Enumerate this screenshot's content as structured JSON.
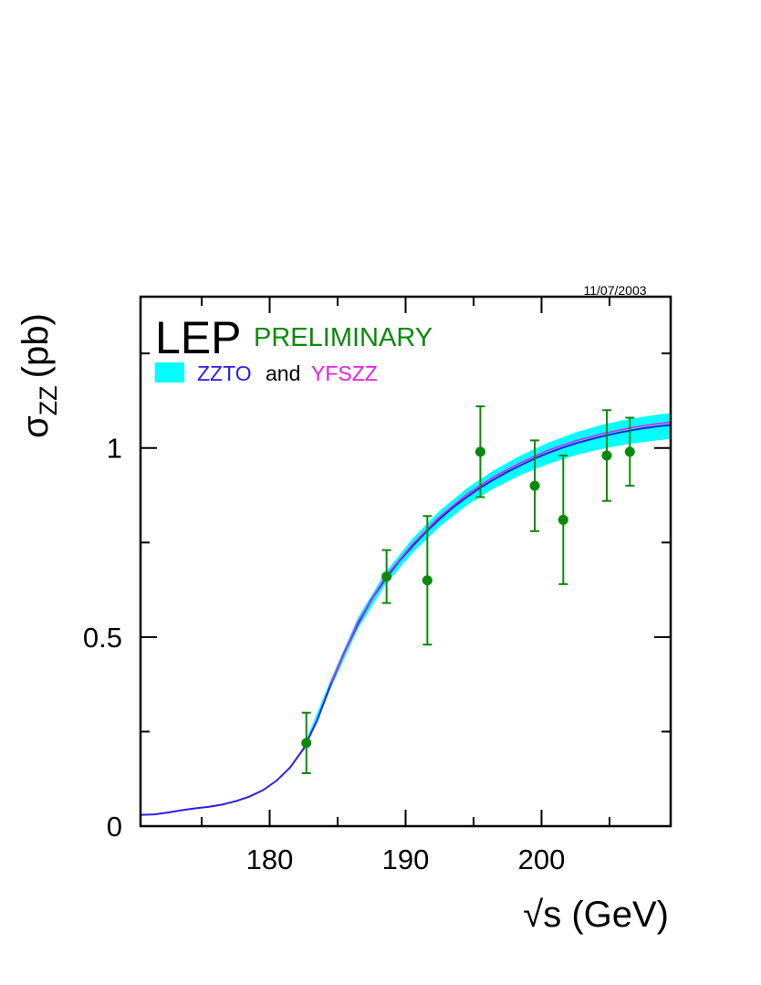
{
  "colors": {
    "data": "#0a8a0a",
    "band": "#00ffff",
    "zzto": "#2a1ee6",
    "yfszz": "#e61ee6",
    "and_text": "#000000",
    "frame": "#000000"
  },
  "header": {
    "date": "11/07/2003",
    "experiment": "LEP",
    "status": "PRELIMINARY"
  },
  "legend": {
    "band_icon": "cyan-band-swatch",
    "zzto": "ZZTO",
    "and": "and",
    "yfszz": "YFSZZ"
  },
  "chart_data": {
    "type": "line",
    "xlabel": "√s (GeV)",
    "ylabel_symbol": "σ",
    "ylabel_sub": "ZZ",
    "ylabel_unit": "(pb)",
    "xlim": [
      170.5,
      209.5
    ],
    "ylim": [
      0,
      1.4
    ],
    "xticks": [
      180,
      190,
      200
    ],
    "yticks": [
      0,
      0.5,
      1
    ],
    "xtick_labels": [
      "180",
      "190",
      "200"
    ],
    "ytick_labels": [
      "0",
      "0.5",
      "1"
    ],
    "grid": false,
    "legend_position": "top-left",
    "series": [
      {
        "name": "ZZTO",
        "kind": "curve",
        "x": [
          170.5,
          171.5,
          172.5,
          173.5,
          174.5,
          175.5,
          176.5,
          177.5,
          178.5,
          179.5,
          180.5,
          181.5,
          182.5,
          183.5,
          184.5,
          185.5,
          186.5,
          187.5,
          188.5,
          189.5,
          190.5,
          191.5,
          192.5,
          193.5,
          194.5,
          195.5,
          196.5,
          197.5,
          198.5,
          199.5,
          200.5,
          201.5,
          202.5,
          203.5,
          204.5,
          205.5,
          206.5,
          207.5,
          208.5,
          209.5
        ],
        "y": [
          0.03,
          0.031,
          0.036,
          0.042,
          0.047,
          0.051,
          0.057,
          0.066,
          0.078,
          0.095,
          0.12,
          0.155,
          0.205,
          0.28,
          0.375,
          0.46,
          0.535,
          0.6,
          0.653,
          0.7,
          0.74,
          0.778,
          0.812,
          0.843,
          0.87,
          0.895,
          0.917,
          0.937,
          0.955,
          0.972,
          0.987,
          1.0,
          1.012,
          1.022,
          1.031,
          1.039,
          1.046,
          1.052,
          1.057,
          1.061
        ]
      },
      {
        "name": "YFSZZ",
        "kind": "curve",
        "x": [
          184.5,
          186.5,
          188.5,
          190.5,
          192.5,
          194.5,
          196.5,
          198.5,
          200.5,
          202.5,
          204.5,
          206.5,
          208.5,
          209.5
        ],
        "y": [
          0.378,
          0.54,
          0.658,
          0.745,
          0.818,
          0.877,
          0.924,
          0.962,
          0.994,
          1.019,
          1.038,
          1.053,
          1.064,
          1.068
        ]
      },
      {
        "name": "uncertainty band",
        "kind": "band",
        "x": [
          182.5,
          184.5,
          186.5,
          188.5,
          190.5,
          192.5,
          194.5,
          196.5,
          198.5,
          200.5,
          202.5,
          204.5,
          206.5,
          208.5,
          209.5
        ],
        "y_low": [
          0.198,
          0.365,
          0.522,
          0.638,
          0.722,
          0.792,
          0.848,
          0.893,
          0.929,
          0.958,
          0.981,
          0.998,
          1.011,
          1.02,
          1.024
        ],
        "y_high": [
          0.212,
          0.388,
          0.552,
          0.67,
          0.76,
          0.834,
          0.893,
          0.941,
          0.981,
          1.014,
          1.041,
          1.062,
          1.077,
          1.088,
          1.092
        ]
      },
      {
        "name": "data",
        "kind": "points",
        "x": [
          182.7,
          188.6,
          191.6,
          195.5,
          199.5,
          201.6,
          204.8,
          206.5
        ],
        "y": [
          0.22,
          0.66,
          0.65,
          0.99,
          0.9,
          0.81,
          0.98,
          0.99
        ],
        "err_low": [
          0.08,
          0.07,
          0.17,
          0.12,
          0.12,
          0.17,
          0.12,
          0.09
        ],
        "err_high": [
          0.08,
          0.07,
          0.17,
          0.12,
          0.12,
          0.17,
          0.12,
          0.09
        ]
      }
    ]
  }
}
